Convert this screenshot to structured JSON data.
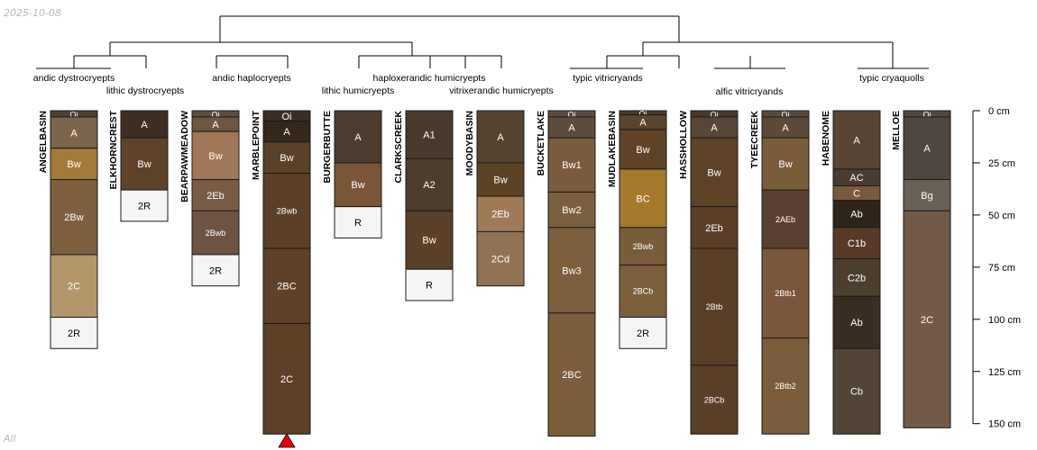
{
  "date_label": "2025-10-08",
  "subset_label": "All",
  "group_labels": [
    "andic dystrocryepts",
    "lithic dystrocryepts",
    "andic haplocryepts",
    "lithic humicryepts",
    "haploxerandic humicryepts",
    "vitrixerandic humicryepts",
    "typic vitricryands",
    "alfic vitricryands",
    "typic cryaquolls"
  ],
  "depth_axis": {
    "unit": "cm",
    "ticks": [
      0,
      25,
      50,
      75,
      100,
      125,
      150
    ],
    "tick_labels": [
      "0 cm",
      "25 cm",
      "50 cm",
      "75 cm",
      "100 cm",
      "125 cm",
      "150 cm"
    ]
  },
  "truncation_marker": {
    "profile": "MARBLEPOINT",
    "color": "#e8000b"
  },
  "profiles": [
    {
      "name": "ANGELBASIN",
      "horizons": [
        {
          "name": "Oi",
          "top": 0,
          "bottom": 3,
          "color": "#4d4034"
        },
        {
          "name": "A",
          "top": 3,
          "bottom": 18,
          "color": "#7d644c"
        },
        {
          "name": "Bw",
          "top": 18,
          "bottom": 33,
          "color": "#a27a3c"
        },
        {
          "name": "2Bw",
          "top": 33,
          "bottom": 69,
          "color": "#7e5f3e"
        },
        {
          "name": "2C",
          "top": 69,
          "bottom": 99,
          "color": "#b4956c"
        },
        {
          "name": "2R",
          "top": 99,
          "bottom": 114,
          "color": "#f5f5f5"
        }
      ]
    },
    {
      "name": "ELKHORNCREST",
      "horizons": [
        {
          "name": "A",
          "top": 0,
          "bottom": 13,
          "color": "#3e2f22"
        },
        {
          "name": "Bw",
          "top": 13,
          "bottom": 38,
          "color": "#5f4328"
        },
        {
          "name": "2R",
          "top": 38,
          "bottom": 53,
          "color": "#f5f5f5"
        }
      ]
    },
    {
      "name": "BEARPAWMEADOW",
      "horizons": [
        {
          "name": "Oi",
          "top": 0,
          "bottom": 3,
          "color": "#5e4e40"
        },
        {
          "name": "A",
          "top": 3,
          "bottom": 10,
          "color": "#6e5640"
        },
        {
          "name": "Bw",
          "top": 10,
          "bottom": 33,
          "color": "#a07858"
        },
        {
          "name": "2Eb",
          "top": 33,
          "bottom": 48,
          "color": "#7a5c44"
        },
        {
          "name": "2Bwb",
          "top": 48,
          "bottom": 69,
          "color": "#6e5242"
        },
        {
          "name": "2R",
          "top": 69,
          "bottom": 84,
          "color": "#f5f5f5"
        }
      ]
    },
    {
      "name": "MARBLEPOINT",
      "horizons": [
        {
          "name": "Oi",
          "top": 0,
          "bottom": 5,
          "color": "#3a2e24"
        },
        {
          "name": "A",
          "top": 5,
          "bottom": 15,
          "color": "#35271a"
        },
        {
          "name": "Bw",
          "top": 15,
          "bottom": 30,
          "color": "#5a4128"
        },
        {
          "name": "2Bwb",
          "top": 30,
          "bottom": 66,
          "color": "#5c4026"
        },
        {
          "name": "2BC",
          "top": 66,
          "bottom": 102,
          "color": "#5e4227"
        },
        {
          "name": "2C",
          "top": 102,
          "bottom": 155,
          "color": "#5c4127"
        }
      ]
    },
    {
      "name": "BURGERBUTTE",
      "horizons": [
        {
          "name": "A",
          "top": 0,
          "bottom": 25,
          "color": "#4e3d2e"
        },
        {
          "name": "Bw",
          "top": 25,
          "bottom": 46,
          "color": "#7a5536"
        },
        {
          "name": "R",
          "top": 46,
          "bottom": 61,
          "color": "#f5f5f5"
        }
      ]
    },
    {
      "name": "CLARKSCREEK",
      "horizons": [
        {
          "name": "A1",
          "top": 0,
          "bottom": 23,
          "color": "#4a3a2c"
        },
        {
          "name": "A2",
          "top": 23,
          "bottom": 48,
          "color": "#4e3d2d"
        },
        {
          "name": "Bw",
          "top": 48,
          "bottom": 76,
          "color": "#5a4028"
        },
        {
          "name": "R",
          "top": 76,
          "bottom": 91,
          "color": "#f5f5f5"
        }
      ]
    },
    {
      "name": "MOODYBASIN",
      "horizons": [
        {
          "name": "A",
          "top": 0,
          "bottom": 25,
          "color": "#56442f"
        },
        {
          "name": "Bw",
          "top": 25,
          "bottom": 41,
          "color": "#5e4224"
        },
        {
          "name": "2Eb",
          "top": 41,
          "bottom": 58,
          "color": "#a07a56"
        },
        {
          "name": "2Cd",
          "top": 58,
          "bottom": 84,
          "color": "#917252"
        }
      ]
    },
    {
      "name": "BUCKETLAKE",
      "horizons": [
        {
          "name": "Oi",
          "top": 0,
          "bottom": 3,
          "color": "#5a4a40"
        },
        {
          "name": "A",
          "top": 3,
          "bottom": 13,
          "color": "#5e4c3c"
        },
        {
          "name": "Bw1",
          "top": 13,
          "bottom": 39,
          "color": "#7a5c3c"
        },
        {
          "name": "Bw2",
          "top": 39,
          "bottom": 56,
          "color": "#7c5f3c"
        },
        {
          "name": "Bw3",
          "top": 56,
          "bottom": 97,
          "color": "#7d5e3d"
        },
        {
          "name": "2BC",
          "top": 97,
          "bottom": 156,
          "color": "#7c5d3c"
        }
      ]
    },
    {
      "name": "MUDLAKEBASIN",
      "horizons": [
        {
          "name": "Oi",
          "top": 0,
          "bottom": 2,
          "color": "#4a3a2c"
        },
        {
          "name": "A",
          "top": 2,
          "bottom": 9,
          "color": "#5a452e"
        },
        {
          "name": "Bw",
          "top": 9,
          "bottom": 28,
          "color": "#5e4326"
        },
        {
          "name": "BC",
          "top": 28,
          "bottom": 56,
          "color": "#a67a2c"
        },
        {
          "name": "2Bwb",
          "top": 56,
          "bottom": 74,
          "color": "#7a5c3a"
        },
        {
          "name": "2BCb",
          "top": 74,
          "bottom": 99,
          "color": "#7d5f3c"
        },
        {
          "name": "2R",
          "top": 99,
          "bottom": 114,
          "color": "#f5f5f5"
        }
      ]
    },
    {
      "name": "HASSHOLLOW",
      "horizons": [
        {
          "name": "Oi",
          "top": 0,
          "bottom": 3,
          "color": "#4a3a2c"
        },
        {
          "name": "A",
          "top": 3,
          "bottom": 13,
          "color": "#5a4636"
        },
        {
          "name": "Bw",
          "top": 13,
          "bottom": 46,
          "color": "#5e4327"
        },
        {
          "name": "2Eb",
          "top": 46,
          "bottom": 66,
          "color": "#5c3e27"
        },
        {
          "name": "2Btb",
          "top": 66,
          "bottom": 122,
          "color": "#5a3f27"
        },
        {
          "name": "2BCb",
          "top": 122,
          "bottom": 155,
          "color": "#5a3f27"
        }
      ]
    },
    {
      "name": "TYEECREEK",
      "horizons": [
        {
          "name": "Oi",
          "top": 0,
          "bottom": 3,
          "color": "#5a4a3e"
        },
        {
          "name": "A",
          "top": 3,
          "bottom": 13,
          "color": "#5e4a38"
        },
        {
          "name": "Bw",
          "top": 13,
          "bottom": 38,
          "color": "#7a5c3a"
        },
        {
          "name": "2AEb",
          "top": 38,
          "bottom": 66,
          "color": "#5a4030"
        },
        {
          "name": "2Btb1",
          "top": 66,
          "bottom": 109,
          "color": "#7a573a"
        },
        {
          "name": "2Btb2",
          "top": 109,
          "bottom": 155,
          "color": "#7a5d3c"
        }
      ]
    },
    {
      "name": "HABENOME",
      "horizons": [
        {
          "name": "A",
          "top": 0,
          "bottom": 28,
          "color": "#5a4535"
        },
        {
          "name": "AC",
          "top": 28,
          "bottom": 36,
          "color": "#4a3c30"
        },
        {
          "name": "C",
          "top": 36,
          "bottom": 43,
          "color": "#7a5a3c"
        },
        {
          "name": "Ab",
          "top": 43,
          "bottom": 56,
          "color": "#2e241a"
        },
        {
          "name": "C1b",
          "top": 56,
          "bottom": 71,
          "color": "#5a3a26"
        },
        {
          "name": "C2b",
          "top": 71,
          "bottom": 89,
          "color": "#4e3e2e"
        },
        {
          "name": "Ab",
          "top": 89,
          "bottom": 114,
          "color": "#3a2e22"
        },
        {
          "name": "Cb",
          "top": 114,
          "bottom": 155,
          "color": "#524436"
        }
      ]
    },
    {
      "name": "MELLOE",
      "horizons": [
        {
          "name": "Oi",
          "top": 0,
          "bottom": 3,
          "color": "#4e4840"
        },
        {
          "name": "A",
          "top": 3,
          "bottom": 33,
          "color": "#4e4840"
        },
        {
          "name": "Bg",
          "top": 33,
          "bottom": 48,
          "color": "#6a6056"
        },
        {
          "name": "2C",
          "top": 48,
          "bottom": 152,
          "color": "#725a46"
        }
      ]
    }
  ]
}
